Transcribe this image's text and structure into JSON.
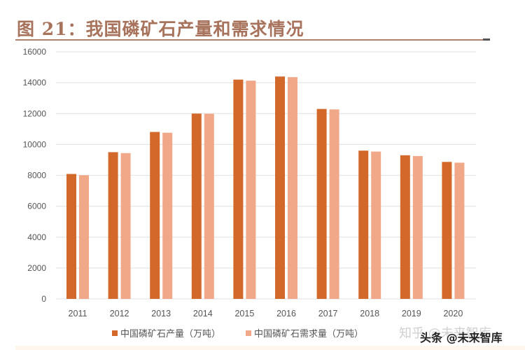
{
  "title": "图 21：我国磷矿石产量和需求情况",
  "legend": {
    "production": "中国磷矿石产量（万吨）",
    "demand": "中国磷矿石需求量（万吨）"
  },
  "colors": {
    "production": "#D2692A",
    "demand": "#F0A888",
    "title": "#A8735C",
    "grid": "#E6E6E6"
  },
  "watermarks": {
    "zhihu": "知乎 @未来智库",
    "toutiao": "头条 @未来智库"
  },
  "chart_data": {
    "type": "bar",
    "title": "图 21：我国磷矿石产量和需求情况",
    "xlabel": "",
    "ylabel": "",
    "categories": [
      "2011",
      "2012",
      "2013",
      "2014",
      "2015",
      "2016",
      "2017",
      "2018",
      "2019",
      "2020"
    ],
    "series": [
      {
        "name": "中国磷矿石产量（万吨）",
        "values": [
          8090,
          9500,
          10810,
          12000,
          14200,
          14400,
          12300,
          9600,
          9300,
          8870
        ]
      },
      {
        "name": "中国磷矿石需求量（万吨）",
        "values": [
          8010,
          9440,
          10760,
          11990,
          14130,
          14360,
          12270,
          9540,
          9250,
          8820
        ]
      }
    ],
    "ylim": [
      0,
      16000
    ],
    "yticks": [
      0,
      2000,
      4000,
      6000,
      8000,
      10000,
      12000,
      14000,
      16000
    ],
    "grid": true,
    "legend_position": "bottom"
  }
}
